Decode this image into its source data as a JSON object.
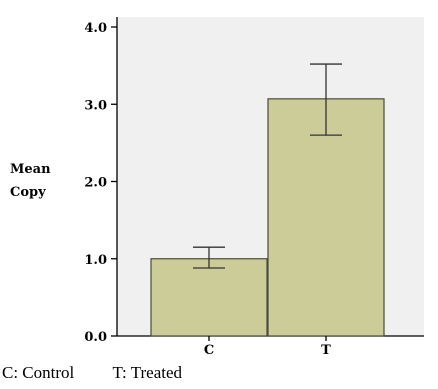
{
  "chart_data": {
    "type": "bar",
    "categories": [
      "C",
      "T"
    ],
    "values": [
      1.0,
      3.07
    ],
    "error_low": [
      0.88,
      2.6
    ],
    "error_high": [
      1.15,
      3.52
    ],
    "ylabel_lines": [
      "Mean",
      "Copy"
    ],
    "ylim": [
      0,
      4
    ],
    "yticks": [
      "0.0",
      "1.0",
      "2.0",
      "3.0",
      "4.0"
    ],
    "grid": false,
    "colors": {
      "bar": "#cccc99",
      "plot_bg": "#f0f0f0",
      "bar_stroke": "#4a4a3a"
    }
  },
  "legend": {
    "c_text": "C: Control",
    "t_text": "T: Treated"
  }
}
